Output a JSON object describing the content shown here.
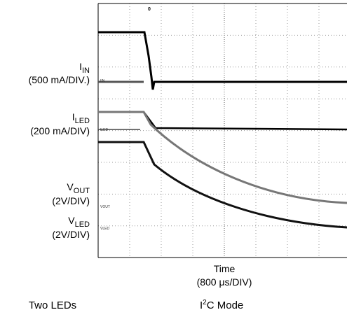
{
  "scope": {
    "marker": "0",
    "traces": [
      {
        "name": "I",
        "sub": "IN",
        "scale": "(500 mA/DIV.)",
        "tag": "IIN"
      },
      {
        "name": "I",
        "sub": "LED",
        "scale": "(200 mA/DIV)",
        "tag": "ILED"
      },
      {
        "name": "V",
        "sub": "OUT",
        "scale": "(2V/DIV)",
        "tag": "VOUT"
      },
      {
        "name": "V",
        "sub": "LED",
        "scale": "(2V/DIV)",
        "tag": "VLED"
      }
    ],
    "x_label": "Time",
    "x_scale": "(800 μs/DIV)"
  },
  "footer": {
    "left": "Two LEDs",
    "right_base": "I",
    "right_sup": "2",
    "right_rest": "C Mode"
  }
}
